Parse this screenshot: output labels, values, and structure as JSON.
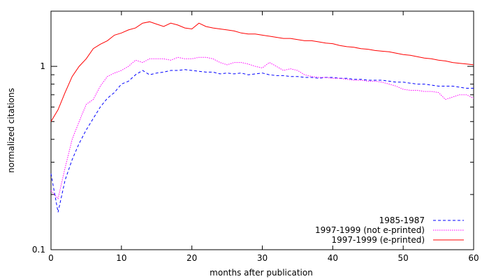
{
  "chart_data": {
    "type": "line",
    "title": "",
    "xlabel": "months after publication",
    "ylabel": "normalized citations",
    "xlim": [
      0,
      60
    ],
    "ylim": [
      0.1,
      2.0
    ],
    "y_scale": "log",
    "grid": false,
    "legend_position": "bottom-right",
    "x_ticks": [
      0,
      10,
      20,
      30,
      40,
      50,
      60
    ],
    "x_tick_labels": [
      "0",
      "10",
      "20",
      "30",
      "40",
      "50",
      "60"
    ],
    "y_ticks": [
      0.1,
      1
    ],
    "y_tick_labels": [
      "0.1",
      "1"
    ],
    "series": [
      {
        "name": "1985-1987",
        "color": "#0000ff",
        "dash": "dashed",
        "x": [
          0,
          1,
          2,
          3,
          4,
          5,
          6,
          7,
          8,
          9,
          10,
          11,
          12,
          13,
          14,
          15,
          16,
          17,
          18,
          19,
          20,
          21,
          22,
          23,
          24,
          25,
          26,
          27,
          28,
          29,
          30,
          31,
          32,
          33,
          34,
          35,
          36,
          37,
          38,
          39,
          40,
          41,
          42,
          43,
          44,
          45,
          46,
          47,
          48,
          49,
          50,
          51,
          52,
          53,
          54,
          55,
          56,
          57,
          58,
          59,
          60
        ],
        "y": [
          0.26,
          0.16,
          0.24,
          0.31,
          0.38,
          0.45,
          0.52,
          0.6,
          0.67,
          0.72,
          0.8,
          0.83,
          0.9,
          0.95,
          0.9,
          0.92,
          0.93,
          0.95,
          0.95,
          0.96,
          0.95,
          0.94,
          0.93,
          0.93,
          0.91,
          0.92,
          0.91,
          0.92,
          0.9,
          0.91,
          0.92,
          0.9,
          0.89,
          0.89,
          0.88,
          0.88,
          0.87,
          0.87,
          0.86,
          0.87,
          0.87,
          0.86,
          0.86,
          0.85,
          0.85,
          0.84,
          0.84,
          0.84,
          0.83,
          0.82,
          0.82,
          0.81,
          0.8,
          0.8,
          0.79,
          0.78,
          0.78,
          0.78,
          0.77,
          0.76,
          0.76
        ]
      },
      {
        "name": "1997-1999 (not e-printed)",
        "color": "#ff00ff",
        "dash": "dotted",
        "x": [
          0,
          1,
          2,
          3,
          4,
          5,
          6,
          7,
          8,
          9,
          10,
          11,
          12,
          13,
          14,
          15,
          16,
          17,
          18,
          19,
          20,
          21,
          22,
          23,
          24,
          25,
          26,
          27,
          28,
          29,
          30,
          31,
          32,
          33,
          34,
          35,
          36,
          37,
          38,
          39,
          40,
          41,
          42,
          43,
          44,
          45,
          46,
          47,
          48,
          49,
          50,
          51,
          52,
          53,
          54,
          55,
          56,
          57,
          58,
          59,
          60
        ],
        "y": [
          0.21,
          0.19,
          0.28,
          0.4,
          0.5,
          0.62,
          0.66,
          0.78,
          0.88,
          0.92,
          0.95,
          1.0,
          1.08,
          1.05,
          1.1,
          1.1,
          1.1,
          1.08,
          1.12,
          1.1,
          1.1,
          1.12,
          1.12,
          1.1,
          1.05,
          1.02,
          1.05,
          1.05,
          1.03,
          1.0,
          0.98,
          1.05,
          1.0,
          0.95,
          0.97,
          0.95,
          0.9,
          0.88,
          0.87,
          0.87,
          0.86,
          0.86,
          0.85,
          0.84,
          0.84,
          0.83,
          0.83,
          0.82,
          0.8,
          0.78,
          0.75,
          0.74,
          0.74,
          0.73,
          0.73,
          0.72,
          0.66,
          0.68,
          0.7,
          0.7,
          0.67
        ]
      },
      {
        "name": "1997-1999 (e-printed)",
        "color": "#ff0000",
        "dash": "solid",
        "x": [
          0,
          1,
          2,
          3,
          4,
          5,
          6,
          7,
          8,
          9,
          10,
          11,
          12,
          13,
          14,
          15,
          16,
          17,
          18,
          19,
          20,
          21,
          22,
          23,
          24,
          25,
          26,
          27,
          28,
          29,
          30,
          31,
          32,
          33,
          34,
          35,
          36,
          37,
          38,
          39,
          40,
          41,
          42,
          43,
          44,
          45,
          46,
          47,
          48,
          49,
          50,
          51,
          52,
          53,
          54,
          55,
          56,
          57,
          58,
          59,
          60
        ],
        "y": [
          0.5,
          0.58,
          0.72,
          0.88,
          1.0,
          1.1,
          1.25,
          1.32,
          1.38,
          1.48,
          1.52,
          1.58,
          1.62,
          1.72,
          1.75,
          1.7,
          1.65,
          1.72,
          1.68,
          1.62,
          1.6,
          1.72,
          1.65,
          1.62,
          1.6,
          1.58,
          1.56,
          1.52,
          1.5,
          1.5,
          1.48,
          1.46,
          1.44,
          1.42,
          1.42,
          1.4,
          1.38,
          1.38,
          1.36,
          1.34,
          1.33,
          1.3,
          1.28,
          1.27,
          1.25,
          1.24,
          1.22,
          1.21,
          1.2,
          1.18,
          1.16,
          1.15,
          1.13,
          1.11,
          1.1,
          1.08,
          1.07,
          1.05,
          1.04,
          1.03,
          1.02
        ]
      }
    ]
  }
}
